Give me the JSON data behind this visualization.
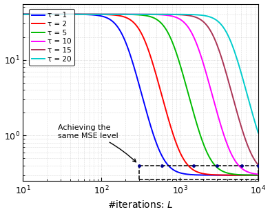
{
  "title": "",
  "xlabel": "#iterations: $L$",
  "ylabel": "",
  "xlim": [
    10,
    10000
  ],
  "ylim": [
    0.25,
    55
  ],
  "tau_values": [
    1,
    2,
    5,
    10,
    15,
    20
  ],
  "tau_colors": [
    "#0000ff",
    "#ff0000",
    "#00bb00",
    "#ff00ff",
    "#aa3355",
    "#00cccc"
  ],
  "legend_labels": [
    "τ = 1",
    "τ = 2",
    "τ = 5",
    "τ = 10",
    "τ = 15",
    "τ = 20"
  ],
  "annotation_text": "Achieving the\nsame MSE level",
  "dot_y": 0.4,
  "dot_x_values": [
    300,
    590,
    1500,
    3000,
    6200,
    10000
  ],
  "background_color": "#ffffff",
  "grid_color": "#bbbbbb"
}
